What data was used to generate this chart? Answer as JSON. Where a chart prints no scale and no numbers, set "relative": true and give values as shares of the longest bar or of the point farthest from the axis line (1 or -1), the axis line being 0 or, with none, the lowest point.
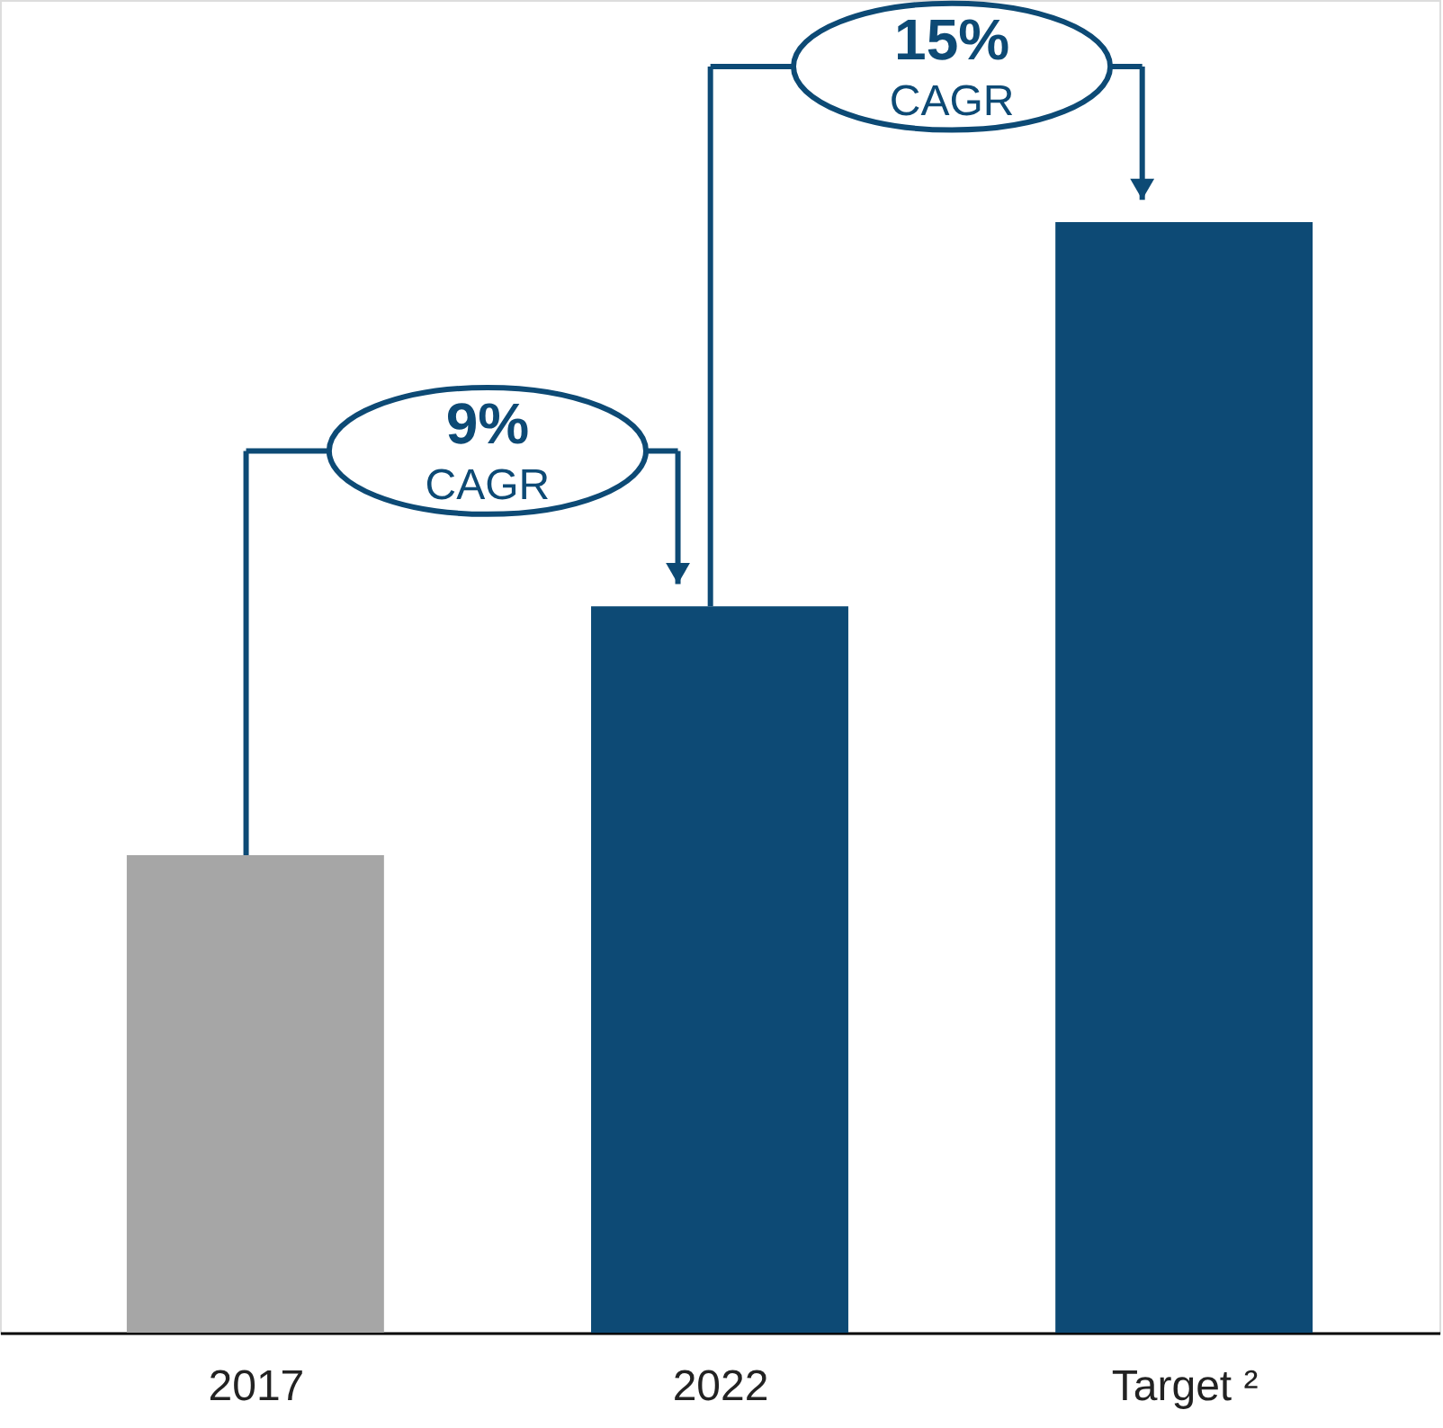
{
  "chart_data": {
    "type": "bar",
    "relative": true,
    "categories": [
      "2017",
      "2022",
      "Target ²"
    ],
    "values": [
      0.43,
      0.654,
      1
    ],
    "colors": [
      "#a6a6a6",
      "#0d4a75",
      "#0d4a75"
    ],
    "annotations": [
      "9% CAGR",
      "15% CAGR"
    ],
    "grid": false
  }
}
